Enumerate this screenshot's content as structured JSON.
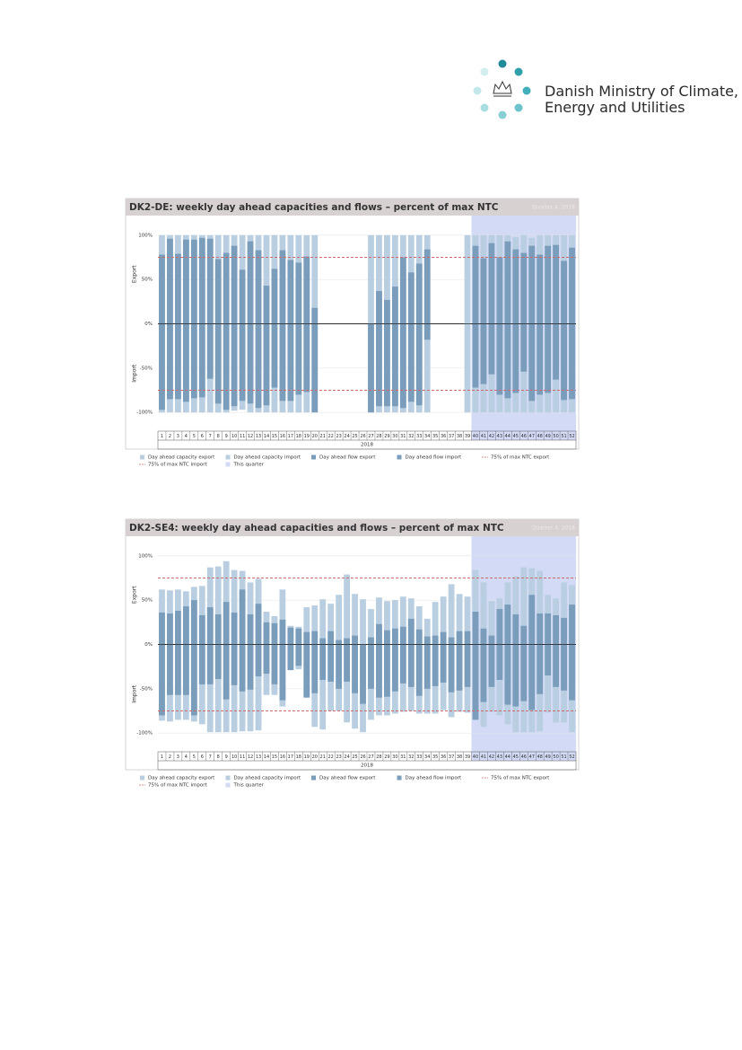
{
  "header": {
    "logo_lines": [
      "Danish Ministry of Climate,",
      "Energy and Utilities"
    ]
  },
  "chart_data": [
    {
      "type": "bar",
      "title": "DK2-DE: weekly day ahead capacities and flows – percent of max NTC",
      "quarter_label": "Quarter 4, 2018",
      "x_label": "2018",
      "y_label_positive": "Export",
      "y_label_negative": "Import",
      "categories": [
        "1",
        "2",
        "3",
        "4",
        "5",
        "6",
        "7",
        "8",
        "9",
        "10",
        "11",
        "12",
        "13",
        "14",
        "15",
        "16",
        "17",
        "18",
        "19",
        "20",
        "21",
        "22",
        "23",
        "24",
        "25",
        "26",
        "27",
        "28",
        "29",
        "30",
        "31",
        "32",
        "33",
        "34",
        "35",
        "36",
        "37",
        "38",
        "39",
        "40",
        "41",
        "42",
        "43",
        "44",
        "45",
        "46",
        "47",
        "48",
        "49",
        "50",
        "51",
        "52"
      ],
      "ylim": [
        -112,
        112
      ],
      "yticks": [
        {
          "value": 100,
          "label": "100%"
        },
        {
          "value": 50,
          "label": "50%"
        },
        {
          "value": 0,
          "label": "0%"
        },
        {
          "value": -50,
          "label": "-50%"
        },
        {
          "value": -100,
          "label": "-100%"
        }
      ],
      "grid": true,
      "series": [
        {
          "name": "Day ahead capacity export",
          "color": "#b9cfe1",
          "values": [
            100,
            100,
            100,
            100,
            100,
            100,
            100,
            100,
            100,
            100,
            100,
            100,
            100,
            100,
            100,
            100,
            100,
            100,
            100,
            100,
            null,
            null,
            null,
            null,
            null,
            null,
            100,
            100,
            100,
            100,
            100,
            100,
            100,
            100,
            null,
            null,
            null,
            null,
            100,
            100,
            100,
            100,
            100,
            100,
            98,
            100,
            97,
            100,
            100,
            100,
            100,
            100
          ]
        },
        {
          "name": "Day ahead capacity import",
          "color": "#b9cfe1",
          "values": [
            -100,
            -100,
            -100,
            -100,
            -100,
            -100,
            -100,
            -100,
            -100,
            -98,
            -97,
            -100,
            -100,
            -100,
            -100,
            -100,
            -100,
            -100,
            -100,
            -100,
            null,
            null,
            null,
            null,
            null,
            null,
            -100,
            -100,
            -100,
            -100,
            -100,
            -100,
            -100,
            -100,
            null,
            null,
            null,
            null,
            -100,
            -100,
            -100,
            -100,
            -100,
            -100,
            -100,
            -100,
            -100,
            -100,
            -100,
            -100,
            -100,
            -100
          ]
        },
        {
          "name": "Day ahead flow export",
          "color": "#7b9dbc",
          "values": [
            78,
            96,
            79,
            95,
            95,
            97,
            96,
            73,
            80,
            88,
            61,
            93,
            83,
            43,
            62,
            83,
            72,
            69,
            76,
            18,
            null,
            null,
            null,
            null,
            null,
            null,
            0,
            37,
            27,
            42,
            75,
            58,
            68,
            84,
            null,
            null,
            null,
            null,
            null,
            88,
            74,
            91,
            75,
            93,
            84,
            80,
            88,
            78,
            88,
            89,
            71,
            86
          ]
        },
        {
          "name": "Day ahead flow import",
          "color": "#7b9dbc",
          "values": [
            -97,
            -85,
            -85,
            -88,
            -84,
            -83,
            -62,
            -90,
            -97,
            -93,
            -87,
            -90,
            -95,
            -92,
            -72,
            -87,
            -87,
            -80,
            -77,
            -100,
            null,
            null,
            null,
            null,
            null,
            null,
            -100,
            -93,
            -93,
            -93,
            -95,
            -88,
            -92,
            -18,
            null,
            null,
            null,
            null,
            null,
            -72,
            -68,
            -57,
            -80,
            -84,
            -78,
            -54,
            -87,
            -80,
            -78,
            -63,
            -86,
            -85
          ]
        }
      ],
      "reference_lines": [
        {
          "name": "75% of max NTC export",
          "value": 75,
          "color": "#d06a6a"
        },
        {
          "name": "75% of max NTC import",
          "value": -75,
          "color": "#d06a6a"
        }
      ],
      "highlight": {
        "name": "This quarter",
        "color": "#d3daf6",
        "from": "40",
        "to": "52"
      }
    },
    {
      "type": "bar",
      "title": "DK2-SE4: weekly day ahead capacities and flows – percent of max NTC",
      "quarter_label": "Quarter 4, 2018",
      "x_label": "2018",
      "y_label_positive": "Export",
      "y_label_negative": "Import",
      "categories": [
        "1",
        "2",
        "3",
        "4",
        "5",
        "6",
        "7",
        "8",
        "9",
        "10",
        "11",
        "12",
        "13",
        "14",
        "15",
        "16",
        "17",
        "18",
        "19",
        "20",
        "21",
        "22",
        "23",
        "24",
        "25",
        "26",
        "27",
        "28",
        "29",
        "30",
        "31",
        "32",
        "33",
        "34",
        "35",
        "36",
        "37",
        "38",
        "39",
        "40",
        "41",
        "42",
        "43",
        "44",
        "45",
        "46",
        "47",
        "48",
        "49",
        "50",
        "51",
        "52"
      ],
      "ylim": [
        -112,
        112
      ],
      "yticks": [
        {
          "value": 100,
          "label": "100%"
        },
        {
          "value": 50,
          "label": "50%"
        },
        {
          "value": 0,
          "label": "0%"
        },
        {
          "value": -50,
          "label": "-50%"
        },
        {
          "value": -100,
          "label": "-100%"
        }
      ],
      "grid": true,
      "series": [
        {
          "name": "Day ahead capacity export",
          "color": "#b9cfe1",
          "values": [
            62,
            61,
            62,
            60,
            65,
            66,
            87,
            88,
            94,
            84,
            83,
            70,
            74,
            37,
            32,
            62,
            21,
            20,
            42,
            44,
            51,
            46,
            56,
            79,
            57,
            51,
            40,
            53,
            49,
            50,
            54,
            52,
            43,
            29,
            48,
            54,
            68,
            57,
            54,
            84,
            70,
            49,
            52,
            70,
            77,
            87,
            86,
            83,
            56,
            52,
            70,
            67
          ]
        },
        {
          "name": "Day ahead capacity import",
          "color": "#b9cfe1",
          "values": [
            -86,
            -87,
            -85,
            -85,
            -87,
            -90,
            -99,
            -99,
            -99,
            -99,
            -98,
            -98,
            -97,
            -57,
            -57,
            -70,
            -27,
            -28,
            -58,
            -93,
            -96,
            -75,
            -75,
            -88,
            -95,
            -99,
            -85,
            -80,
            -80,
            -78,
            -76,
            -75,
            -78,
            -78,
            -78,
            -74,
            -82,
            -76,
            -77,
            -85,
            -93,
            -76,
            -80,
            -90,
            -99,
            -99,
            -99,
            -98,
            -77,
            -88,
            -88,
            -99
          ]
        },
        {
          "name": "Day ahead flow export",
          "color": "#7b9dbc",
          "values": [
            36,
            35,
            38,
            43,
            50,
            33,
            42,
            34,
            48,
            36,
            62,
            34,
            46,
            25,
            24,
            28,
            19,
            18,
            14,
            15,
            7,
            15,
            5,
            7,
            10,
            0,
            8,
            23,
            16,
            18,
            20,
            29,
            17,
            9,
            10,
            14,
            8,
            15,
            15,
            37,
            18,
            10,
            40,
            45,
            34,
            21,
            56,
            35,
            35,
            33,
            30,
            45
          ]
        },
        {
          "name": "Day ahead flow import",
          "color": "#7b9dbc",
          "values": [
            -80,
            -57,
            -57,
            -57,
            -80,
            -45,
            -45,
            -39,
            -62,
            -46,
            -53,
            -51,
            -36,
            -33,
            -45,
            -63,
            -29,
            -24,
            -60,
            -55,
            -40,
            -42,
            -50,
            -42,
            -55,
            -67,
            -50,
            -60,
            -59,
            -53,
            -44,
            -48,
            -58,
            -50,
            -47,
            -43,
            -54,
            -52,
            -48,
            -85,
            -65,
            -48,
            -40,
            -68,
            -70,
            -64,
            -74,
            -56,
            -35,
            -48,
            -52,
            -63
          ]
        }
      ],
      "reference_lines": [
        {
          "name": "75% of max NTC export",
          "value": 75,
          "color": "#d06a6a"
        },
        {
          "name": "75% of max NTC import",
          "value": -75,
          "color": "#d06a6a"
        }
      ],
      "highlight": {
        "name": "This quarter",
        "color": "#d3daf6",
        "from": "40",
        "to": "52"
      }
    }
  ]
}
